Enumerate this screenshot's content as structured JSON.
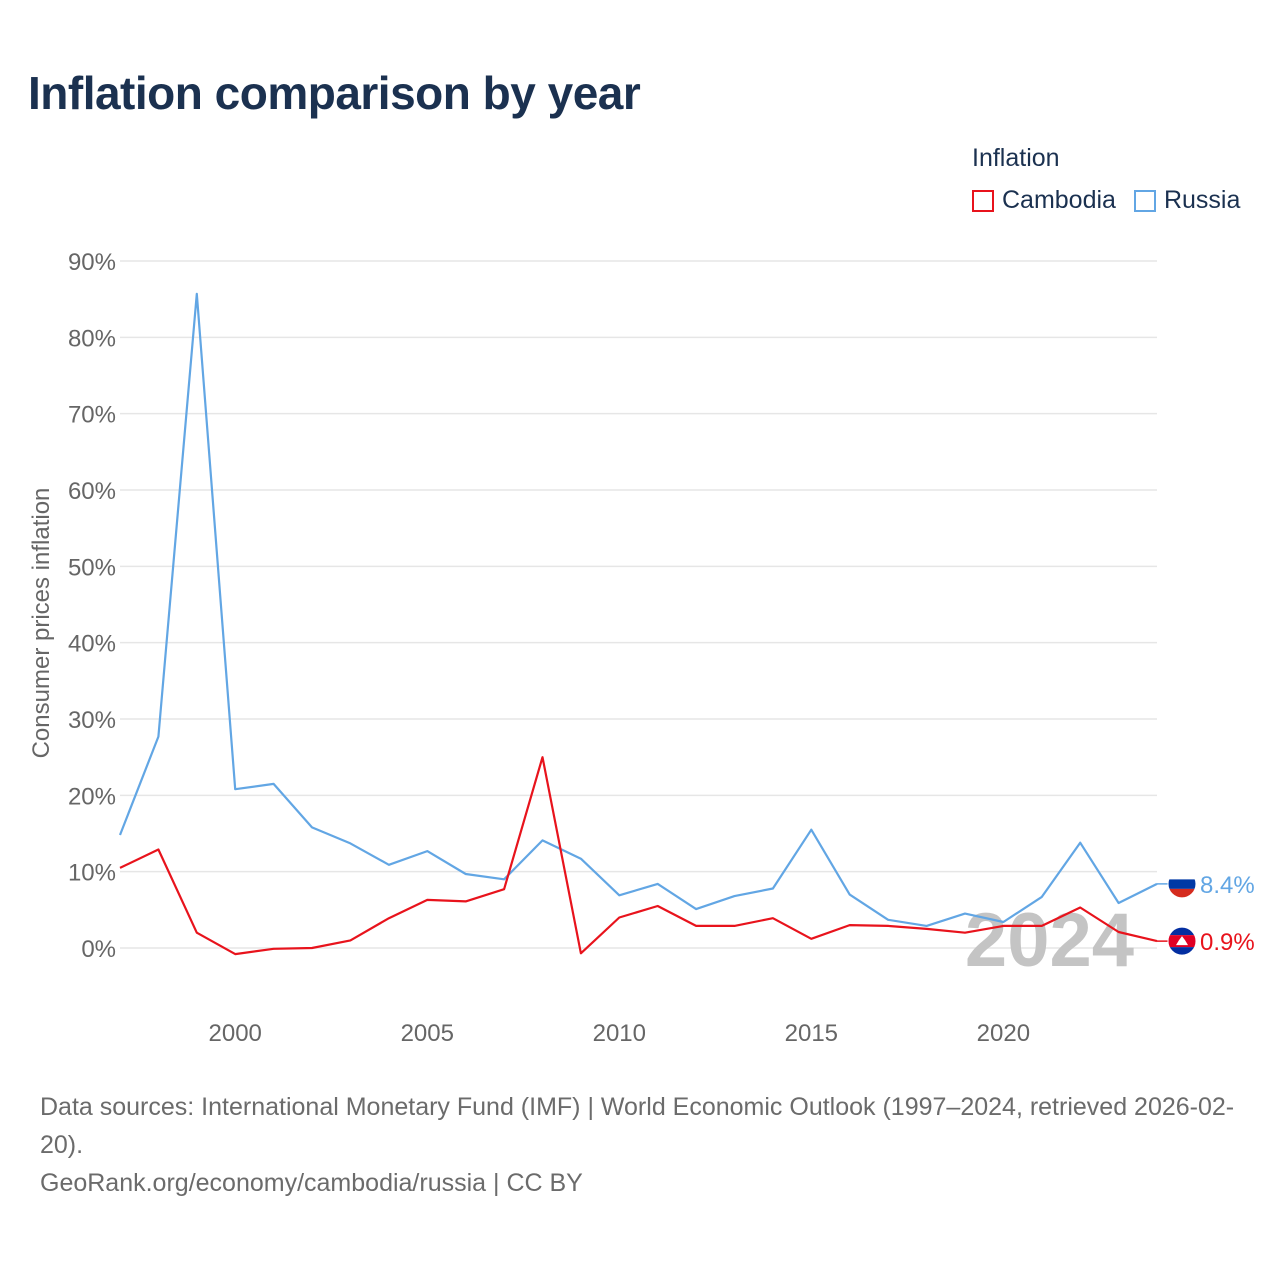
{
  "title": "Inflation comparison by year",
  "legend": {
    "title": "Inflation",
    "items": [
      {
        "name": "Cambodia",
        "color": "#e8131c"
      },
      {
        "name": "Russia",
        "color": "#62a6e4"
      }
    ]
  },
  "year_watermark": "2024",
  "footer": {
    "sources": "Data sources: International Monetary Fund (IMF) | World Economic Outlook (1997–2024, retrieved 2026-02-20).",
    "url": "GeoRank.org/economy/cambodia/russia | CC BY"
  },
  "chart_data": {
    "type": "line",
    "title": "Inflation comparison by year",
    "xlabel": "",
    "ylabel": "Consumer prices inflation",
    "xlim": [
      1997,
      2024
    ],
    "ylim": [
      -6,
      90
    ],
    "x_ticks": [
      2000,
      2005,
      2010,
      2015,
      2020
    ],
    "y_ticks": [
      0,
      10,
      20,
      30,
      40,
      50,
      60,
      70,
      80,
      90
    ],
    "y_tick_labels": [
      "0%",
      "10%",
      "20%",
      "30%",
      "40%",
      "50%",
      "60%",
      "70%",
      "80%",
      "90%"
    ],
    "x": [
      1997,
      1998,
      1999,
      2000,
      2001,
      2002,
      2003,
      2004,
      2005,
      2006,
      2007,
      2008,
      2009,
      2010,
      2011,
      2012,
      2013,
      2014,
      2015,
      2016,
      2017,
      2018,
      2019,
      2020,
      2021,
      2022,
      2023,
      2024
    ],
    "series": [
      {
        "name": "Russia",
        "color": "#62a6e4",
        "end_label": "8.4%",
        "values": [
          14.8,
          27.7,
          85.7,
          20.8,
          21.5,
          15.8,
          13.7,
          10.9,
          12.7,
          9.7,
          9.0,
          14.1,
          11.7,
          6.9,
          8.4,
          5.1,
          6.8,
          7.8,
          15.5,
          7.0,
          3.7,
          2.9,
          4.5,
          3.4,
          6.7,
          13.8,
          5.9,
          8.4
        ]
      },
      {
        "name": "Cambodia",
        "color": "#e8131c",
        "end_label": "0.9%",
        "values": [
          10.5,
          12.9,
          2.0,
          -0.8,
          -0.1,
          0.0,
          1.0,
          3.9,
          6.3,
          6.1,
          7.7,
          25.0,
          -0.7,
          4.0,
          5.5,
          2.9,
          2.9,
          3.9,
          1.2,
          3.0,
          2.9,
          2.5,
          2.0,
          2.9,
          2.9,
          5.3,
          2.1,
          0.9
        ]
      }
    ]
  }
}
